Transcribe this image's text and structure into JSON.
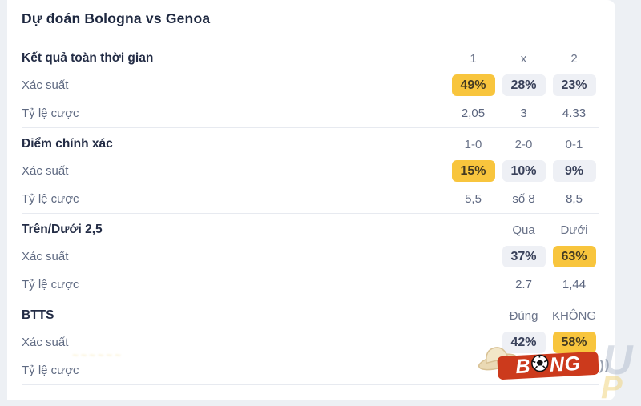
{
  "page": {
    "title": "Dự đoán Bologna vs Genoa"
  },
  "labels": {
    "probability": "Xác suất",
    "odds": "Tỷ lệ cược"
  },
  "colors": {
    "highlight_badge": "#F8C53D",
    "neutral_badge": "#EEF0F5",
    "logo_red": "#CC3A1C",
    "card_bg": "#FFFFFF",
    "page_bg": "#EDF0F4"
  },
  "sections": [
    {
      "title": "Kết quả toàn thời gian",
      "columns": [
        "1",
        "x",
        "2"
      ],
      "probabilities": [
        "49%",
        "28%",
        "23%"
      ],
      "highlight_index": 0,
      "odds": [
        "2,05",
        "3",
        "4.33"
      ]
    },
    {
      "title": "Điểm chính xác",
      "columns": [
        "1-0",
        "2-0",
        "0-1"
      ],
      "probabilities": [
        "15%",
        "10%",
        "9%"
      ],
      "highlight_index": 0,
      "odds": [
        "5,5",
        "số 8",
        "8,5"
      ]
    },
    {
      "title": "Trên/Dưới 2,5",
      "columns": [
        "Qua",
        "Dưới"
      ],
      "probabilities": [
        "37%",
        "63%"
      ],
      "highlight_index": 1,
      "odds": [
        "2.7",
        "1,44"
      ]
    },
    {
      "title": "BTTS",
      "columns": [
        "Đúng",
        "KHÔNG"
      ],
      "probabilities": [
        "42%",
        "58%"
      ],
      "highlight_index": 1,
      "odds": [
        "",
        ""
      ]
    }
  ],
  "watermark": {
    "logo_part1": "B",
    "logo_part2": "NG",
    "speed_marks": "))",
    "faint_letter_right": "U",
    "faint_letter_bottom": "P",
    "scribble": "~~~~~~"
  }
}
